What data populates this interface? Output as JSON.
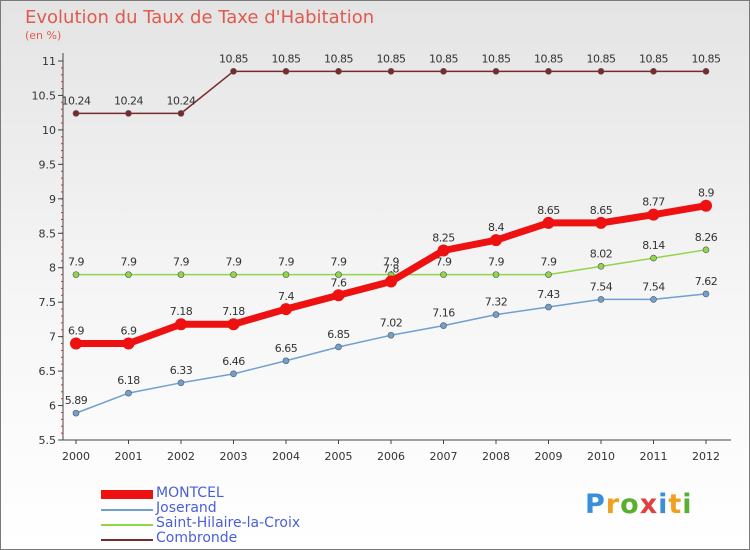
{
  "title": "Evolution du Taux de Taxe d'Habitation",
  "unit_label": "(en %)",
  "brand": {
    "text": "Proxiti",
    "letter_colors": [
      "#3a8fd8",
      "#f0a020",
      "#58b030",
      "#e04040",
      "#3a8fd8",
      "#f0a020",
      "#58b030"
    ]
  },
  "chart_data": {
    "type": "line",
    "x": [
      "2000",
      "2001",
      "2002",
      "2003",
      "2004",
      "2005",
      "2006",
      "2007",
      "2008",
      "2009",
      "2010",
      "2011",
      "2012"
    ],
    "ylim": [
      5.5,
      11
    ],
    "yticks": [
      "5.5",
      "6",
      "6.5",
      "7",
      "7.5",
      "8",
      "8.5",
      "9",
      "9.5",
      "10",
      "10.5",
      "11"
    ],
    "grid": false,
    "legend_position": "bottom-left",
    "series": [
      {
        "name": "Combronde",
        "color": "#7a2a2a",
        "values": [
          10.24,
          10.24,
          10.24,
          10.85,
          10.85,
          10.85,
          10.85,
          10.85,
          10.85,
          10.85,
          10.85,
          10.85,
          10.85
        ],
        "labels": [
          "10.24",
          "10.24",
          "10.24",
          "10.85",
          "10.85",
          "10.85",
          "10.85",
          "10.85",
          "10.85",
          "10.85",
          "10.85",
          "10.85",
          "10.85"
        ]
      },
      {
        "name": "Saint-Hilaire-la-Croix",
        "color": "#8fd64a",
        "values": [
          7.9,
          7.9,
          7.9,
          7.9,
          7.9,
          7.9,
          7.9,
          7.9,
          7.9,
          7.9,
          8.02,
          8.14,
          8.26
        ],
        "labels": [
          "7.9",
          "7.9",
          "7.9",
          "7.9",
          "7.9",
          "7.9",
          "7.9",
          "7.9",
          "7.9",
          "7.9",
          "8.02",
          "8.14",
          "8.26"
        ]
      },
      {
        "name": "Joserand",
        "color": "#6fa0d0",
        "values": [
          5.89,
          6.18,
          6.33,
          6.46,
          6.65,
          6.85,
          7.02,
          7.16,
          7.32,
          7.43,
          7.54,
          7.54,
          7.62
        ],
        "labels": [
          "5.89",
          "6.18",
          "6.33",
          "6.46",
          "6.65",
          "6.85",
          "7.02",
          "7.16",
          "7.32",
          "7.43",
          "7.54",
          "7.54",
          "7.62"
        ]
      },
      {
        "name": "MONTCEL",
        "color": "#ee1111",
        "values": [
          6.9,
          6.9,
          7.18,
          7.18,
          7.4,
          7.6,
          7.8,
          8.25,
          8.4,
          8.65,
          8.65,
          8.77,
          8.9
        ],
        "labels": [
          "6.9",
          "6.9",
          "7.18",
          "7.18",
          "7.4",
          "7.6",
          "7.8",
          "8.25",
          "8.4",
          "8.65",
          "8.65",
          "8.77",
          "8.9"
        ]
      }
    ],
    "legend_order": [
      "MONTCEL",
      "Joserand",
      "Saint-Hilaire-la-Croix",
      "Combronde"
    ]
  }
}
